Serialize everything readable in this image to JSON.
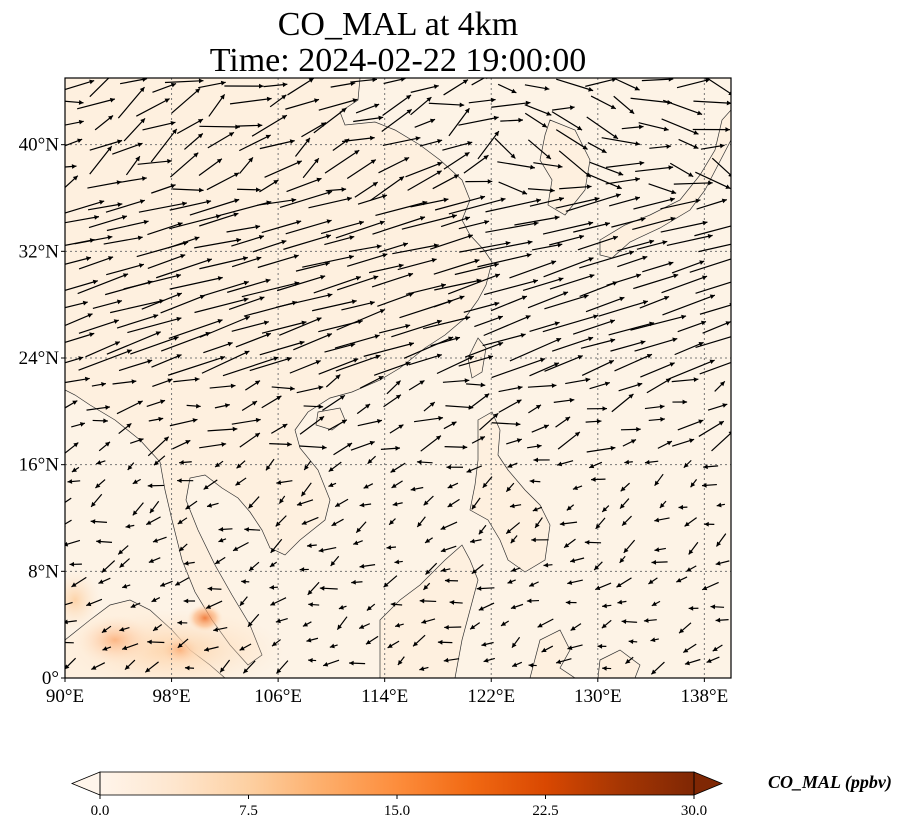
{
  "title": {
    "line1": "CO_MAL at 4km",
    "line2": "Time: 2024-02-22 19:00:00"
  },
  "map": {
    "variable": "CO_MAL",
    "level": "4km",
    "lon_range": [
      90,
      140
    ],
    "lat_range": [
      0,
      45
    ],
    "gridlines": "dotted",
    "lon_ticks": [
      "90°E",
      "98°E",
      "106°E",
      "114°E",
      "122°E",
      "130°E",
      "138°E"
    ],
    "lat_ticks": [
      "0°",
      "8°N",
      "16°N",
      "24°N",
      "32°N",
      "40°N"
    ],
    "ocean_color": "#fff5eb",
    "land_tint": "#fef0df"
  },
  "colorbar": {
    "label": "CO_MAL (ppbv)",
    "min": 0.0,
    "max": 30.0,
    "extend": "both",
    "tick_labels": [
      "0.0",
      "7.5",
      "15.0",
      "22.5",
      "30.0"
    ],
    "colormap": [
      "#fff5eb",
      "#fee6ce",
      "#fdd0a2",
      "#fdae6b",
      "#fd8d3c",
      "#f16913",
      "#d94801",
      "#a63603",
      "#7f2704"
    ]
  },
  "chart_data": {
    "type": "heatmap",
    "title": "CO_MAL at 4km\nTime: 2024-02-22 19:00:00",
    "xlabel": "",
    "ylabel": "",
    "xlim": [
      90,
      140
    ],
    "ylim": [
      0,
      45
    ],
    "colorbar_range": [
      0,
      30
    ],
    "hotspots": [
      {
        "lon": 100.5,
        "lat": 4.5,
        "value": 14
      },
      {
        "lon": 98.5,
        "lat": 2.0,
        "value": 10
      },
      {
        "lon": 95.0,
        "lat": 2.5,
        "value": 6
      }
    ],
    "wind_regimes": [
      {
        "region": "lat 24–36 (westerly jet)",
        "direction_deg": 15,
        "speed": "strong"
      },
      {
        "region": "lat 36–45",
        "direction_deg": -20,
        "speed": "moderate"
      },
      {
        "region": "lat 0–16 (NE trade)",
        "direction_deg": 205,
        "speed": "weak"
      }
    ]
  }
}
